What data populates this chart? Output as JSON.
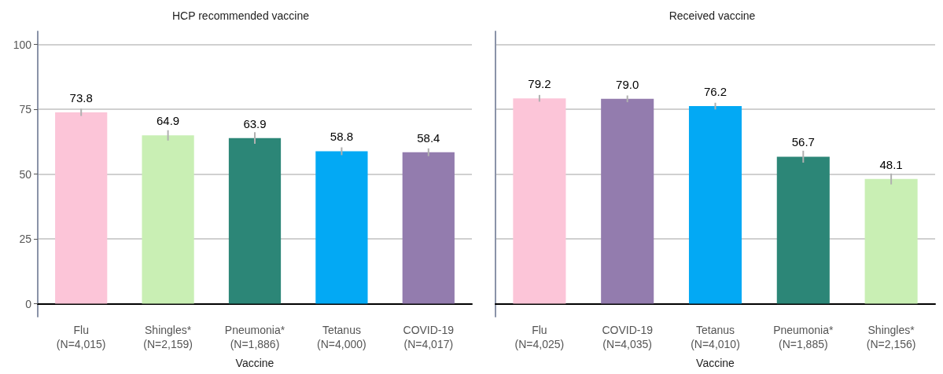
{
  "chart_data": [
    {
      "type": "bar",
      "title": "HCP recommended vaccine",
      "xlabel": "Vaccine",
      "categories": [
        "Flu\n(N=4,015)",
        "Shingles*\n(N=2,159)",
        "Pneumonia*\n(N=1,886)",
        "Tetanus\n(N=4,000)",
        "COVID-19\n(N=4,017)"
      ],
      "values": [
        73.8,
        64.9,
        63.9,
        58.8,
        58.4
      ],
      "errors": [
        1.4,
        2.0,
        2.2,
        1.5,
        1.5
      ],
      "colors": [
        "#fcc5d8",
        "#c9efb4",
        "#2c8677",
        "#03a9f4",
        "#937cae"
      ],
      "value_labels": [
        "73.8",
        "64.9",
        "63.9",
        "58.8",
        "58.4"
      ],
      "ylim": [
        -5,
        105
      ],
      "yticks": [
        0,
        25,
        50,
        75,
        100
      ],
      "grid": "y"
    },
    {
      "type": "bar",
      "title": "Received vaccine",
      "xlabel": "Vaccine",
      "categories": [
        "Flu\n(N=4,025)",
        "COVID-19\n(N=4,035)",
        "Tetanus\n(N=4,010)",
        "Pneumonia*\n(N=1,885)",
        "Shingles*\n(N=2,156)"
      ],
      "values": [
        79.2,
        79.0,
        76.2,
        56.7,
        48.1
      ],
      "errors": [
        1.3,
        1.3,
        1.3,
        2.3,
        2.1
      ],
      "colors": [
        "#fcc5d8",
        "#937cae",
        "#03a9f4",
        "#2c8677",
        "#c9efb4"
      ],
      "value_labels": [
        "79.2",
        "79.0",
        "76.2",
        "56.7",
        "48.1"
      ],
      "ylim": [
        -5,
        105
      ],
      "yticks": [
        0,
        25,
        50,
        75,
        100
      ],
      "grid": "y",
      "tick_labels": "x"
    }
  ]
}
